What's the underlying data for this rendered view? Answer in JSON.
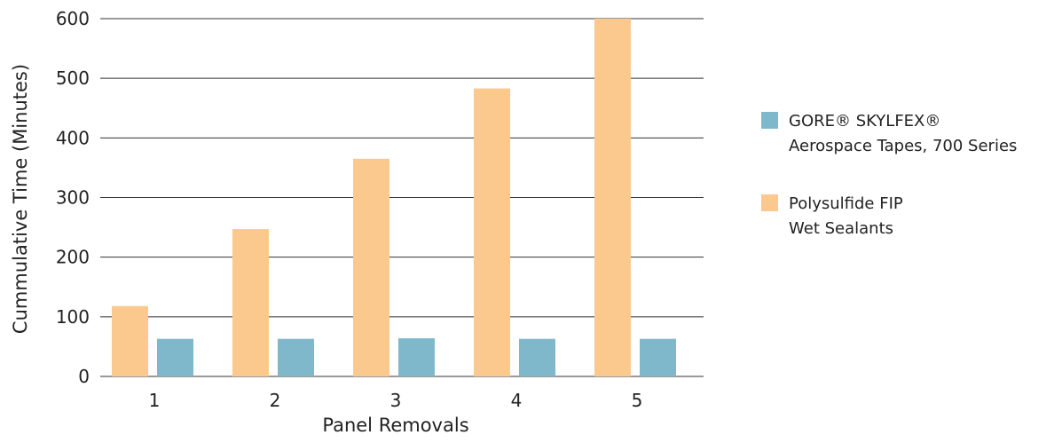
{
  "chart_data": {
    "type": "bar",
    "title": "",
    "xlabel": "Panel Removals",
    "ylabel": "Cummulative Time (Minutes)",
    "ylim": [
      0,
      600
    ],
    "yticks": [
      "0",
      "100",
      "200",
      "300",
      "400",
      "500",
      "600"
    ],
    "categories": [
      "1",
      "2",
      "3",
      "4",
      "5"
    ],
    "grid": true,
    "legend_position": "right",
    "series": [
      {
        "name": "Polysulfide FIP Wet Sealants",
        "legend_lines": [
          "Polysulfide FIP",
          "Wet Sealants"
        ],
        "color": "#FBC98E",
        "values": [
          118,
          247,
          365,
          483,
          600
        ]
      },
      {
        "name": "GORE® SKYLFEX® Aerospace Tapes, 700 Series",
        "legend_lines": [
          "GORE® SKYLFEX®",
          "Aerospace Tapes, 700 Series"
        ],
        "color": "#80B8CB",
        "values": [
          63,
          63,
          64,
          63,
          63
        ]
      }
    ]
  }
}
